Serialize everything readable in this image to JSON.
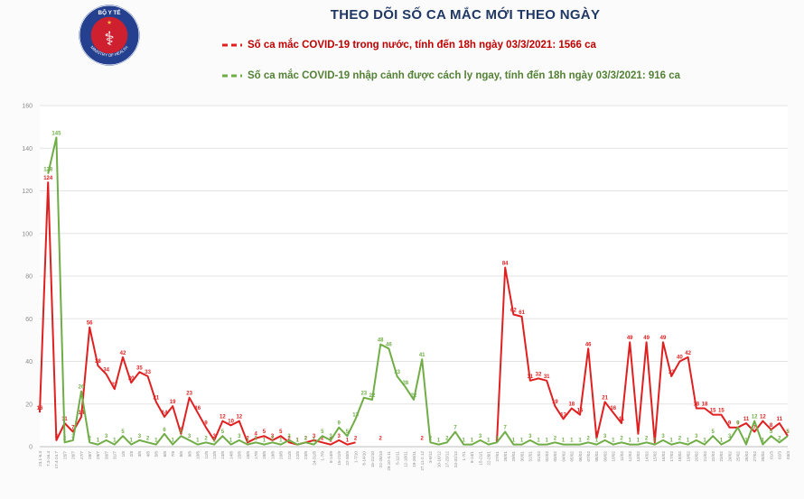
{
  "header": {
    "title": "THEO DÕI SỐ CA MẮC MỚI THEO NGÀY",
    "logo_text_top": "BỘ Y TẾ",
    "logo_text_bottom": "MINISTRY OF HEALTH"
  },
  "legend": [
    {
      "label": "Số ca mắc COVID-19 trong nước, tính đến 18h ngày 03/3/2021: 1566 ca",
      "text_color": "#c00000",
      "line_color": "#e02020"
    },
    {
      "label": "Số ca mắc COVID-19 nhập cảnh được cách ly ngay, tính đến 18h ngày 03/3/2021: 916 ca",
      "text_color": "#538135",
      "line_color": "#70ad47"
    }
  ],
  "colors": {
    "title": "#1f3864",
    "grid": "#e3e3e3",
    "axis": "#bfbfbf",
    "tick_text": "#8c8c8c",
    "domestic_series": "#e02020",
    "imported_series": "#70ad47"
  },
  "chart_data": {
    "type": "line",
    "title": "THEO DÕI SỐ CA MẮC MỚI THEO NGÀY",
    "xlabel": "",
    "ylabel": "",
    "ylim": [
      0,
      160
    ],
    "ytick_step": 20,
    "grid": true,
    "legend_position": "top",
    "point_labels": true,
    "categories": [
      "23.1-6.3",
      "7.3-16.4",
      "17.4-24.7",
      "25/7",
      "26/7",
      "27/7",
      "28/7",
      "29/7",
      "30/7",
      "31/7",
      "1/8",
      "2/8",
      "3/8",
      "4/8",
      "5/8",
      "6/8",
      "7/8",
      "8/8",
      "9/8",
      "10/8",
      "11/8",
      "12/8",
      "13/8",
      "14/8",
      "15/8",
      "16/8",
      "17/8",
      "18/8",
      "19/8",
      "20/8",
      "21/8",
      "22/8",
      "23/8",
      "24-31/8",
      "1-7/9",
      "8-14/9",
      "15-21/9",
      "22-30/9",
      "1-7/10",
      "8-14/10",
      "15-21/10",
      "22-28/10",
      "29.10-4.11",
      "5-11/11",
      "12-18/11",
      "19-26/11",
      "27.11-2.12",
      "3-9/12",
      "10-16/12",
      "17-23/12",
      "24-31/12",
      "1-7/1",
      "8-14/1",
      "15-21/1",
      "22-26/1",
      "27/01",
      "28/01",
      "29/01",
      "30/01",
      "31/01",
      "01/02",
      "02/02",
      "03/02",
      "04/02",
      "05/02",
      "06/02",
      "07/02",
      "08/02",
      "09/02",
      "10/02",
      "11/02",
      "12/02",
      "13/02",
      "14/02",
      "15/02",
      "16/02",
      "17/02",
      "18/02",
      "19/02",
      "20/02",
      "21/02",
      "22/02",
      "23/02",
      "24/02",
      "25/02",
      "26/02",
      "27/02",
      "28/02",
      "01/3",
      "02/3",
      "03/3"
    ],
    "series": [
      {
        "name": "Số ca mắc COVID-19 trong nước",
        "color": "#e02020",
        "values": [
          16,
          124,
          3,
          11,
          7,
          14,
          56,
          38,
          34,
          27,
          42,
          30,
          35,
          33,
          21,
          14,
          19,
          6,
          23,
          16,
          9,
          3,
          12,
          10,
          12,
          2,
          4,
          5,
          3,
          5,
          2,
          1,
          2,
          3,
          2,
          1,
          3,
          1,
          2,
          null,
          null,
          2,
          null,
          null,
          null,
          null,
          2,
          null,
          null,
          null,
          null,
          null,
          null,
          null,
          null,
          2,
          84,
          62,
          61,
          31,
          32,
          31,
          19,
          13,
          18,
          15,
          46,
          4,
          21,
          16,
          11,
          49,
          6,
          49,
          2,
          49,
          33,
          40,
          42,
          18,
          18,
          15,
          15,
          9,
          9,
          11,
          7,
          12,
          8,
          11,
          5
        ]
      },
      {
        "name": "Số ca mắc COVID-19 nhập cảnh được cách ly ngay",
        "color": "#70ad47",
        "values": [
          null,
          128,
          145,
          2,
          3,
          26,
          2,
          1,
          3,
          1,
          5,
          1,
          3,
          2,
          1,
          6,
          1,
          5,
          3,
          1,
          2,
          1,
          5,
          1,
          3,
          1,
          2,
          1,
          2,
          1,
          3,
          1,
          2,
          1,
          5,
          3,
          9,
          5,
          13,
          23,
          22,
          48,
          46,
          33,
          28,
          22,
          41,
          2,
          1,
          2,
          7,
          1,
          1,
          3,
          1,
          2,
          7,
          1,
          1,
          3,
          1,
          1,
          2,
          1,
          1,
          1,
          2,
          1,
          3,
          1,
          2,
          1,
          1,
          2,
          1,
          3,
          1,
          2,
          1,
          3,
          1,
          5,
          1,
          3,
          9,
          1,
          12,
          1,
          5,
          2,
          5
        ]
      }
    ]
  }
}
